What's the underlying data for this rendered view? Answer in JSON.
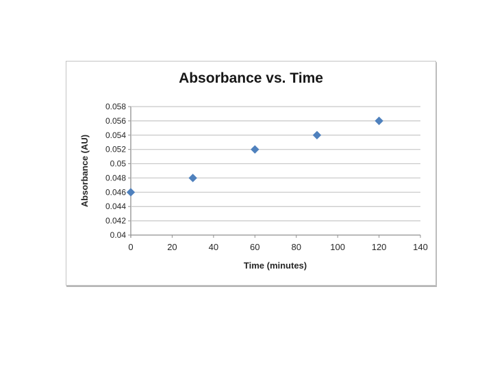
{
  "page": {
    "background_color": "#ffffff",
    "chart_border_color": "#c3c3c3"
  },
  "chart_data": {
    "type": "scatter",
    "title": "Absorbance vs. Time",
    "xlabel": "Time (minutes)",
    "ylabel": "Absorbance (AU)",
    "x": [
      0,
      30,
      60,
      90,
      120
    ],
    "y": [
      0.046,
      0.048,
      0.052,
      0.054,
      0.056
    ],
    "xlim": [
      0,
      140
    ],
    "ylim": [
      0.04,
      0.058
    ],
    "x_ticks": [
      "0",
      "20",
      "40",
      "60",
      "80",
      "100",
      "120",
      "140"
    ],
    "y_ticks": [
      "0.04",
      "0.042",
      "0.044",
      "0.046",
      "0.048",
      "0.05",
      "0.052",
      "0.054",
      "0.056",
      "0.058"
    ],
    "grid": "horizontal-only",
    "legend": "none",
    "marker": "diamond",
    "marker_size": 11,
    "marker_color": "#4F81BD",
    "gridline_color": "#c6c6c6",
    "axis_color": "#8f8f8f",
    "text_color": "#262626"
  }
}
